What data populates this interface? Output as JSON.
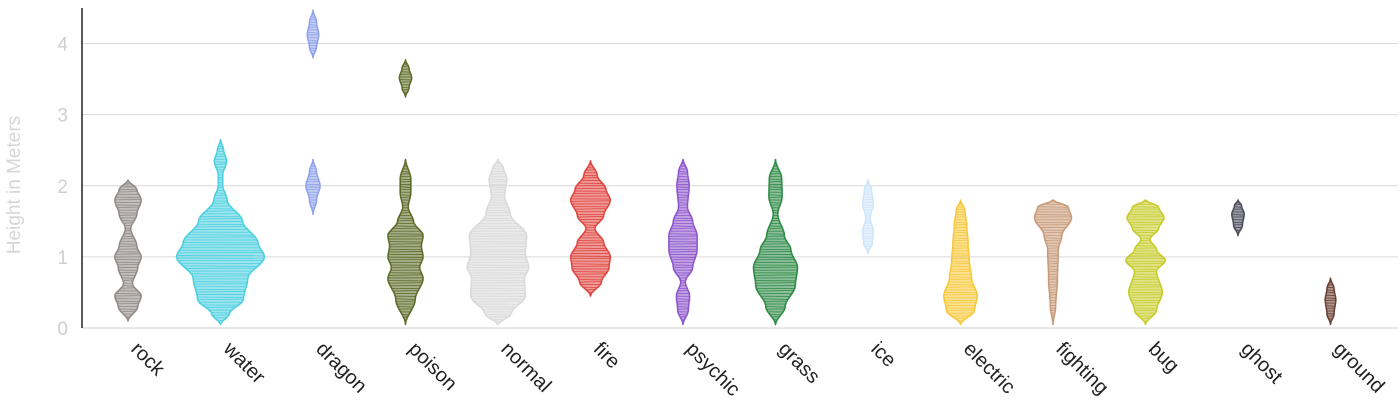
{
  "chart_data": {
    "type": "violin",
    "ylabel": "Height in Meters",
    "yticks": [
      0,
      1,
      2,
      3,
      4
    ],
    "ylim": [
      0,
      4.5
    ],
    "grid": true,
    "categories": [
      "rock",
      "water",
      "dragon",
      "poison",
      "normal",
      "fire",
      "psychic",
      "grass",
      "ice",
      "electric",
      "fighting",
      "bug",
      "ghost",
      "ground"
    ],
    "colors": [
      "#918a86",
      "#4ccfe0",
      "#8fa3eb",
      "#5f6b2a",
      "#d9d9d9",
      "#e0463f",
      "#8e55cc",
      "#2e8b46",
      "#cfe5fb",
      "#f7c83a",
      "#c99a78",
      "#c6cc2a",
      "#4a4a5a",
      "#6b3f33"
    ],
    "series": [
      {
        "name": "rock",
        "segments": [
          [
            {
              "y": 0.1,
              "w": 0
            },
            {
              "y": 0.3,
              "w": 0.22
            },
            {
              "y": 0.45,
              "w": 0.3
            },
            {
              "y": 0.62,
              "w": 0.1
            },
            {
              "y": 0.85,
              "w": 0.22
            },
            {
              "y": 1.0,
              "w": 0.3
            },
            {
              "y": 1.15,
              "w": 0.2
            },
            {
              "y": 1.4,
              "w": 0.06
            },
            {
              "y": 1.6,
              "w": 0.2
            },
            {
              "y": 1.8,
              "w": 0.3
            },
            {
              "y": 1.95,
              "w": 0.2
            },
            {
              "y": 2.08,
              "w": 0
            }
          ]
        ]
      },
      {
        "name": "water",
        "segments": [
          [
            {
              "y": 0.05,
              "w": 0
            },
            {
              "y": 0.2,
              "w": 0.2
            },
            {
              "y": 0.4,
              "w": 0.52
            },
            {
              "y": 0.7,
              "w": 0.62
            },
            {
              "y": 1.0,
              "w": 1.0
            },
            {
              "y": 1.2,
              "w": 0.85
            },
            {
              "y": 1.5,
              "w": 0.5
            },
            {
              "y": 1.8,
              "w": 0.15
            },
            {
              "y": 2.0,
              "w": 0.05
            },
            {
              "y": 2.15,
              "w": 0.05
            },
            {
              "y": 2.35,
              "w": 0.14
            },
            {
              "y": 2.5,
              "w": 0.07
            },
            {
              "y": 2.65,
              "w": 0
            }
          ]
        ]
      },
      {
        "name": "dragon",
        "segments": [
          [
            {
              "y": 1.6,
              "w": 0
            },
            {
              "y": 1.8,
              "w": 0.08
            },
            {
              "y": 2.0,
              "w": 0.16
            },
            {
              "y": 2.2,
              "w": 0.08
            },
            {
              "y": 2.37,
              "w": 0
            }
          ],
          [
            {
              "y": 3.8,
              "w": 0
            },
            {
              "y": 3.95,
              "w": 0.08
            },
            {
              "y": 4.12,
              "w": 0.13
            },
            {
              "y": 4.3,
              "w": 0.08
            },
            {
              "y": 4.47,
              "w": 0
            }
          ]
        ]
      },
      {
        "name": "poison",
        "segments": [
          [
            {
              "y": 0.05,
              "w": 0
            },
            {
              "y": 0.4,
              "w": 0.22
            },
            {
              "y": 0.7,
              "w": 0.4
            },
            {
              "y": 0.85,
              "w": 0.32
            },
            {
              "y": 1.0,
              "w": 0.4
            },
            {
              "y": 1.15,
              "w": 0.36
            },
            {
              "y": 1.3,
              "w": 0.4
            },
            {
              "y": 1.5,
              "w": 0.18
            },
            {
              "y": 1.7,
              "w": 0.06
            },
            {
              "y": 1.9,
              "w": 0.12
            },
            {
              "y": 2.1,
              "w": 0.12
            },
            {
              "y": 2.37,
              "w": 0
            }
          ],
          [
            {
              "y": 3.25,
              "w": 0
            },
            {
              "y": 3.38,
              "w": 0.08
            },
            {
              "y": 3.52,
              "w": 0.14
            },
            {
              "y": 3.65,
              "w": 0.08
            },
            {
              "y": 3.77,
              "w": 0
            }
          ]
        ]
      },
      {
        "name": "normal",
        "segments": [
          [
            {
              "y": 0.05,
              "w": 0
            },
            {
              "y": 0.2,
              "w": 0.3
            },
            {
              "y": 0.45,
              "w": 0.62
            },
            {
              "y": 0.7,
              "w": 0.6
            },
            {
              "y": 0.85,
              "w": 0.7
            },
            {
              "y": 1.05,
              "w": 0.62
            },
            {
              "y": 1.3,
              "w": 0.65
            },
            {
              "y": 1.6,
              "w": 0.28
            },
            {
              "y": 1.85,
              "w": 0.15
            },
            {
              "y": 2.1,
              "w": 0.2
            },
            {
              "y": 2.25,
              "w": 0.12
            },
            {
              "y": 2.37,
              "w": 0
            }
          ]
        ]
      },
      {
        "name": "fire",
        "segments": [
          [
            {
              "y": 0.45,
              "w": 0
            },
            {
              "y": 0.65,
              "w": 0.25
            },
            {
              "y": 0.85,
              "w": 0.42
            },
            {
              "y": 1.0,
              "w": 0.45
            },
            {
              "y": 1.2,
              "w": 0.3
            },
            {
              "y": 1.4,
              "w": 0.1
            },
            {
              "y": 1.58,
              "w": 0.3
            },
            {
              "y": 1.8,
              "w": 0.45
            },
            {
              "y": 1.95,
              "w": 0.35
            },
            {
              "y": 2.15,
              "w": 0.15
            },
            {
              "y": 2.35,
              "w": 0
            }
          ]
        ]
      },
      {
        "name": "psychic",
        "segments": [
          [
            {
              "y": 0.05,
              "w": 0
            },
            {
              "y": 0.25,
              "w": 0.12
            },
            {
              "y": 0.45,
              "w": 0.15
            },
            {
              "y": 0.65,
              "w": 0.05
            },
            {
              "y": 0.85,
              "w": 0.22
            },
            {
              "y": 1.1,
              "w": 0.32
            },
            {
              "y": 1.3,
              "w": 0.32
            },
            {
              "y": 1.5,
              "w": 0.22
            },
            {
              "y": 1.7,
              "w": 0.1
            },
            {
              "y": 2.0,
              "w": 0.14
            },
            {
              "y": 2.2,
              "w": 0.1
            },
            {
              "y": 2.37,
              "w": 0
            }
          ]
        ]
      },
      {
        "name": "grass",
        "segments": [
          [
            {
              "y": 0.05,
              "w": 0
            },
            {
              "y": 0.3,
              "w": 0.22
            },
            {
              "y": 0.6,
              "w": 0.45
            },
            {
              "y": 0.85,
              "w": 0.5
            },
            {
              "y": 1.1,
              "w": 0.35
            },
            {
              "y": 1.3,
              "w": 0.2
            },
            {
              "y": 1.6,
              "w": 0.05
            },
            {
              "y": 1.85,
              "w": 0.15
            },
            {
              "y": 2.1,
              "w": 0.14
            },
            {
              "y": 2.37,
              "w": 0
            }
          ]
        ]
      },
      {
        "name": "ice",
        "segments": [
          [
            {
              "y": 1.05,
              "w": 0
            },
            {
              "y": 1.2,
              "w": 0.1
            },
            {
              "y": 1.35,
              "w": 0.12
            },
            {
              "y": 1.55,
              "w": 0.05
            },
            {
              "y": 1.75,
              "w": 0.12
            },
            {
              "y": 1.95,
              "w": 0.08
            },
            {
              "y": 2.08,
              "w": 0
            }
          ]
        ]
      },
      {
        "name": "electric",
        "segments": [
          [
            {
              "y": 0.05,
              "w": 0
            },
            {
              "y": 0.25,
              "w": 0.32
            },
            {
              "y": 0.45,
              "w": 0.38
            },
            {
              "y": 0.7,
              "w": 0.25
            },
            {
              "y": 0.95,
              "w": 0.2
            },
            {
              "y": 1.2,
              "w": 0.17
            },
            {
              "y": 1.45,
              "w": 0.14
            },
            {
              "y": 1.65,
              "w": 0.1
            },
            {
              "y": 1.8,
              "w": 0
            }
          ]
        ]
      },
      {
        "name": "fighting",
        "segments": [
          [
            {
              "y": 0.05,
              "w": 0
            },
            {
              "y": 0.3,
              "w": 0.06
            },
            {
              "y": 0.7,
              "w": 0.1
            },
            {
              "y": 1.1,
              "w": 0.12
            },
            {
              "y": 1.3,
              "w": 0.2
            },
            {
              "y": 1.55,
              "w": 0.42
            },
            {
              "y": 1.7,
              "w": 0.35
            },
            {
              "y": 1.8,
              "w": 0
            }
          ]
        ]
      },
      {
        "name": "bug",
        "segments": [
          [
            {
              "y": 0.05,
              "w": 0
            },
            {
              "y": 0.25,
              "w": 0.25
            },
            {
              "y": 0.5,
              "w": 0.38
            },
            {
              "y": 0.8,
              "w": 0.25
            },
            {
              "y": 0.95,
              "w": 0.45
            },
            {
              "y": 1.1,
              "w": 0.25
            },
            {
              "y": 1.25,
              "w": 0.1
            },
            {
              "y": 1.4,
              "w": 0.3
            },
            {
              "y": 1.55,
              "w": 0.42
            },
            {
              "y": 1.7,
              "w": 0.3
            },
            {
              "y": 1.8,
              "w": 0
            }
          ]
        ]
      },
      {
        "name": "ghost",
        "segments": [
          [
            {
              "y": 1.3,
              "w": 0
            },
            {
              "y": 1.45,
              "w": 0.1
            },
            {
              "y": 1.6,
              "w": 0.14
            },
            {
              "y": 1.72,
              "w": 0.08
            },
            {
              "y": 1.8,
              "w": 0
            }
          ]
        ]
      },
      {
        "name": "ground",
        "segments": [
          [
            {
              "y": 0.05,
              "w": 0
            },
            {
              "y": 0.2,
              "w": 0.08
            },
            {
              "y": 0.4,
              "w": 0.12
            },
            {
              "y": 0.55,
              "w": 0.08
            },
            {
              "y": 0.7,
              "w": 0
            }
          ]
        ]
      }
    ]
  }
}
